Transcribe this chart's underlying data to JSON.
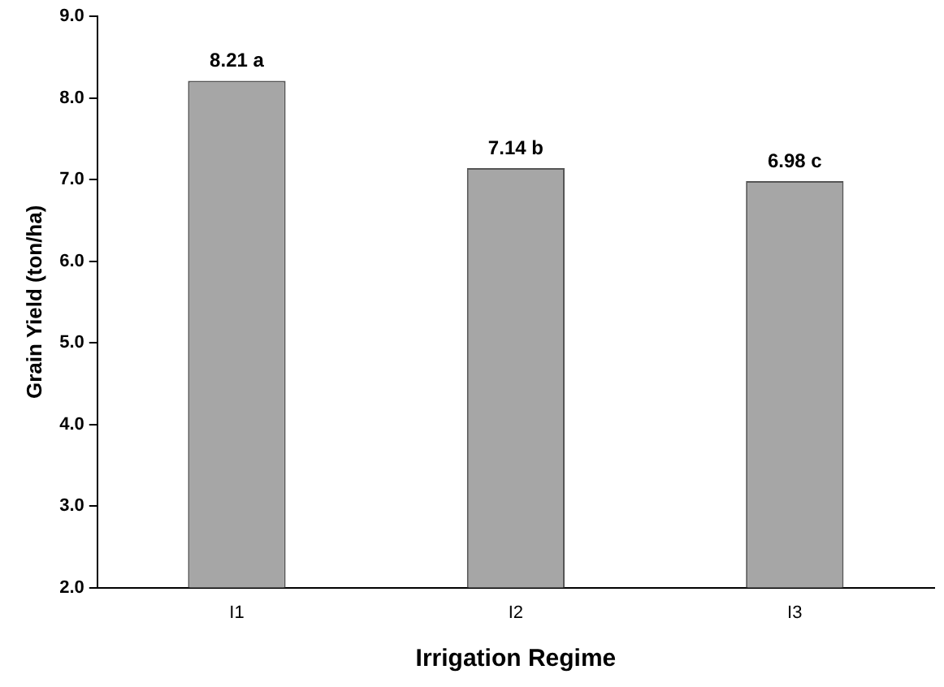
{
  "chart_data": {
    "type": "bar",
    "xlabel": "Irrigation Regime",
    "ylabel": "Grain Yield (ton/ha)",
    "categories": [
      "I1",
      "I2",
      "I3"
    ],
    "values": [
      8.21,
      7.14,
      6.98
    ],
    "value_labels": [
      "8.21 a",
      "7.14 b",
      "6.98 c"
    ],
    "color": "#a6a6a6",
    "ylim": [
      2,
      9
    ],
    "yticks": [
      {
        "value": 2,
        "label": "2.0"
      },
      {
        "value": 3,
        "label": "3.0"
      },
      {
        "value": 4,
        "label": "4.0"
      },
      {
        "value": 5,
        "label": "5.0"
      },
      {
        "value": 6,
        "label": "6.0"
      },
      {
        "value": 7,
        "label": "7.0"
      },
      {
        "value": 8,
        "label": "8.0"
      },
      {
        "value": 9,
        "label": "9.0"
      }
    ],
    "grid": false,
    "legend": false
  }
}
